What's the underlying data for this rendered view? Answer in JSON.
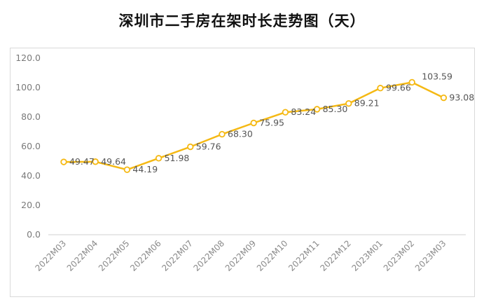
{
  "title": "深圳市二手房在架时长走势图（天）",
  "colors": {
    "line": "#F5B914",
    "marker_fill": "#ffffff",
    "axis": "#d0d0d0",
    "text": "#666666"
  },
  "chart_data": {
    "type": "line",
    "title": "深圳市二手房在架时长走势图（天）",
    "categories": [
      "2022M03",
      "2022M04",
      "2022M05",
      "2022M06",
      "2022M07",
      "2022M08",
      "2022M09",
      "2022M10",
      "2022M11",
      "2022M12",
      "2023M01",
      "2023M02",
      "2023M03"
    ],
    "series": [
      {
        "values": [
          49.47,
          49.64,
          44.19,
          51.98,
          59.76,
          68.3,
          75.95,
          83.24,
          85.3,
          89.21,
          99.66,
          103.59,
          93.08
        ],
        "labels": [
          "49.47",
          "49.64",
          "44.19",
          "51.98",
          "59.76",
          "68.30",
          "75.95",
          "83.24",
          "85.30",
          "89.21",
          "99.66",
          "103.59",
          "93.08"
        ]
      }
    ],
    "yticks": [
      "0.0",
      "20.0",
      "40.0",
      "60.0",
      "80.0",
      "100.0",
      "120.0"
    ],
    "ylim": [
      0,
      120
    ],
    "grid": false,
    "legend": "none"
  }
}
